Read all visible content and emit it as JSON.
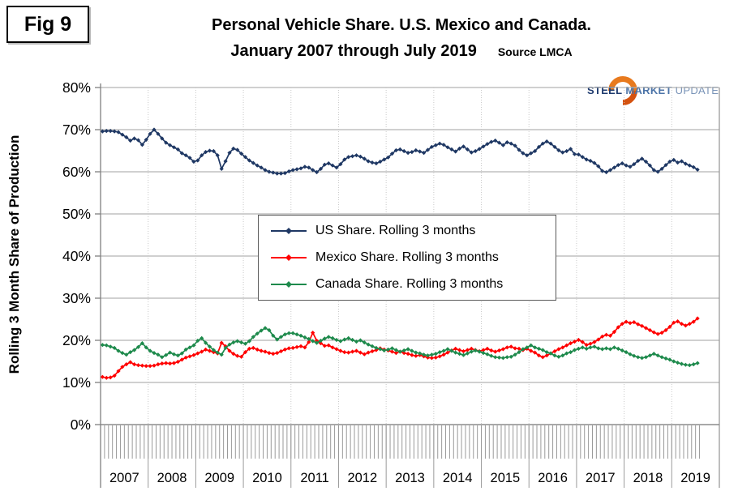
{
  "fig_label": "Fig 9",
  "title_line1": "Personal Vehicle Share. U.S. Mexico and Canada.",
  "title_line2": "January 2007 through July 2019",
  "source_label": "Source LMCA",
  "logo": {
    "steel": "STEEL",
    "market": "MARKET",
    "update": "UPDATE",
    "orange": "#E87A1E",
    "dark_blue": "#1E3A6E",
    "light_blue": "#4C74A8"
  },
  "y_axis_label": "Rolling 3 Month Share of Production",
  "chart_data": {
    "type": "line",
    "markers": "diamond",
    "grid": "horizontal solid gray, vertical dotted year boundaries",
    "legend_position": "center of plot",
    "x_unit": "month",
    "x_start": "January 2007",
    "x_end": "July 2019",
    "ylim": [
      0,
      80
    ],
    "y_tick_labels": [
      "0%",
      "10%",
      "20%",
      "30%",
      "40%",
      "50%",
      "60%",
      "70%",
      "80%"
    ],
    "year_labels": [
      "2007",
      "2008",
      "2009",
      "2010",
      "2011",
      "2012",
      "2013",
      "2014",
      "2015",
      "2016",
      "2017",
      "2018",
      "2019"
    ],
    "series": [
      {
        "name": "US Share. Rolling 3 months",
        "color": "#1F3864",
        "values": [
          69.6,
          69.7,
          69.7,
          69.6,
          69.4,
          68.8,
          68.2,
          67.4,
          67.9,
          67.5,
          66.4,
          67.6,
          69.0,
          70.0,
          69.0,
          67.9,
          66.9,
          66.3,
          65.8,
          65.3,
          64.4,
          63.9,
          63.3,
          62.4,
          62.7,
          63.9,
          64.7,
          65.0,
          64.9,
          63.9,
          60.7,
          62.5,
          64.5,
          65.5,
          65.2,
          64.3,
          63.5,
          62.7,
          62.1,
          61.5,
          61.0,
          60.4,
          60.0,
          59.8,
          59.6,
          59.6,
          59.7,
          60.1,
          60.4,
          60.6,
          60.8,
          61.2,
          61.0,
          60.4,
          59.9,
          60.7,
          61.7,
          62.0,
          61.5,
          61.0,
          61.8,
          62.9,
          63.5,
          63.7,
          63.9,
          63.6,
          63.1,
          62.5,
          62.2,
          62.0,
          62.4,
          62.9,
          63.4,
          64.3,
          65.1,
          65.3,
          64.9,
          64.5,
          64.7,
          65.1,
          64.8,
          64.5,
          65.2,
          65.9,
          66.3,
          66.7,
          66.4,
          65.8,
          65.3,
          64.8,
          65.5,
          66.0,
          65.3,
          64.6,
          64.9,
          65.4,
          66.0,
          66.6,
          67.1,
          67.4,
          66.9,
          66.3,
          67.0,
          66.7,
          66.2,
          65.2,
          64.4,
          63.9,
          64.4,
          64.9,
          65.9,
          66.7,
          67.2,
          66.7,
          65.9,
          65.1,
          64.6,
          64.9,
          65.4,
          64.2,
          64.1,
          63.5,
          62.9,
          62.6,
          62.1,
          61.3,
          60.2,
          59.9,
          60.4,
          61.0,
          61.6,
          62.0,
          61.5,
          61.2,
          61.8,
          62.6,
          63.1,
          62.4,
          61.5,
          60.4,
          60.0,
          60.7,
          61.6,
          62.4,
          62.8,
          62.2,
          62.5,
          61.9,
          61.5,
          61.1,
          60.5
        ]
      },
      {
        "name": "Mexico Share. Rolling 3 months",
        "color": "#FF0000",
        "values": [
          11.3,
          11.1,
          11.2,
          11.6,
          12.7,
          13.7,
          14.3,
          14.8,
          14.3,
          14.1,
          14.0,
          13.9,
          13.9,
          14.0,
          14.3,
          14.5,
          14.6,
          14.5,
          14.6,
          14.9,
          15.4,
          15.9,
          16.2,
          16.5,
          16.9,
          17.3,
          17.8,
          17.5,
          17.2,
          16.9,
          19.4,
          18.6,
          17.5,
          16.8,
          16.3,
          16.1,
          17.2,
          18.0,
          18.2,
          17.8,
          17.5,
          17.3,
          17.0,
          16.8,
          17.0,
          17.4,
          17.8,
          18.1,
          18.2,
          18.4,
          18.6,
          18.3,
          19.6,
          21.8,
          19.9,
          19.3,
          18.7,
          18.8,
          18.3,
          17.9,
          17.5,
          17.2,
          17.1,
          17.3,
          17.5,
          17.1,
          16.7,
          17.1,
          17.4,
          17.7,
          18.1,
          17.8,
          17.6,
          17.3,
          17.0,
          17.3,
          17.0,
          16.8,
          16.5,
          16.3,
          16.5,
          16.2,
          15.9,
          15.8,
          15.9,
          16.2,
          16.6,
          17.1,
          17.6,
          18.0,
          17.7,
          17.4,
          17.7,
          18.0,
          17.7,
          17.4,
          17.7,
          18.0,
          17.6,
          17.3,
          17.6,
          17.9,
          18.3,
          18.5,
          18.1,
          18.0,
          17.7,
          18.0,
          17.5,
          17.1,
          16.4,
          16.0,
          16.4,
          16.9,
          17.4,
          17.9,
          18.3,
          18.8,
          19.3,
          19.7,
          20.1,
          19.6,
          18.9,
          19.2,
          19.6,
          20.2,
          20.9,
          21.3,
          21.1,
          22.0,
          23.1,
          23.9,
          24.4,
          24.1,
          24.3,
          23.8,
          23.4,
          22.9,
          22.4,
          21.9,
          21.5,
          21.8,
          22.4,
          23.2,
          24.2,
          24.5,
          23.9,
          23.5,
          23.9,
          24.4,
          25.2
        ]
      },
      {
        "name": "Canada Share. Rolling 3 months",
        "color": "#1E8A4C",
        "values": [
          18.9,
          18.8,
          18.5,
          18.2,
          17.5,
          17.0,
          16.6,
          17.2,
          17.7,
          18.4,
          19.3,
          18.3,
          17.5,
          17.0,
          16.6,
          16.0,
          16.5,
          17.1,
          16.7,
          16.4,
          16.9,
          17.8,
          18.3,
          18.8,
          19.9,
          20.5,
          19.4,
          18.5,
          17.7,
          17.1,
          16.6,
          18.2,
          19.0,
          19.5,
          19.8,
          19.5,
          19.2,
          19.8,
          20.8,
          21.6,
          22.3,
          22.9,
          22.4,
          21.1,
          20.2,
          20.8,
          21.4,
          21.7,
          21.7,
          21.4,
          21.1,
          20.7,
          20.3,
          19.8,
          19.4,
          19.9,
          20.4,
          20.8,
          20.5,
          20.1,
          19.8,
          20.2,
          20.5,
          20.1,
          19.7,
          20.0,
          19.5,
          19.0,
          18.6,
          18.2,
          17.9,
          17.6,
          17.8,
          18.1,
          17.7,
          17.3,
          17.6,
          17.9,
          17.5,
          17.1,
          16.9,
          16.6,
          16.4,
          16.6,
          16.8,
          17.2,
          17.5,
          17.9,
          17.5,
          17.1,
          16.8,
          16.5,
          16.9,
          17.3,
          17.6,
          17.3,
          17.0,
          16.7,
          16.3,
          16.0,
          15.9,
          15.8,
          16.0,
          16.1,
          16.6,
          17.2,
          17.9,
          18.3,
          18.8,
          18.3,
          18.0,
          17.7,
          17.2,
          16.9,
          16.4,
          16.1,
          16.4,
          16.9,
          17.2,
          17.7,
          18.0,
          18.3,
          18.0,
          18.3,
          18.5,
          18.1,
          17.9,
          18.1,
          17.9,
          18.3,
          18.0,
          17.6,
          17.2,
          16.7,
          16.3,
          16.0,
          15.8,
          16.0,
          16.4,
          16.8,
          16.4,
          16.0,
          15.7,
          15.4,
          15.0,
          14.7,
          14.4,
          14.2,
          14.1,
          14.3,
          14.6
        ]
      }
    ]
  }
}
